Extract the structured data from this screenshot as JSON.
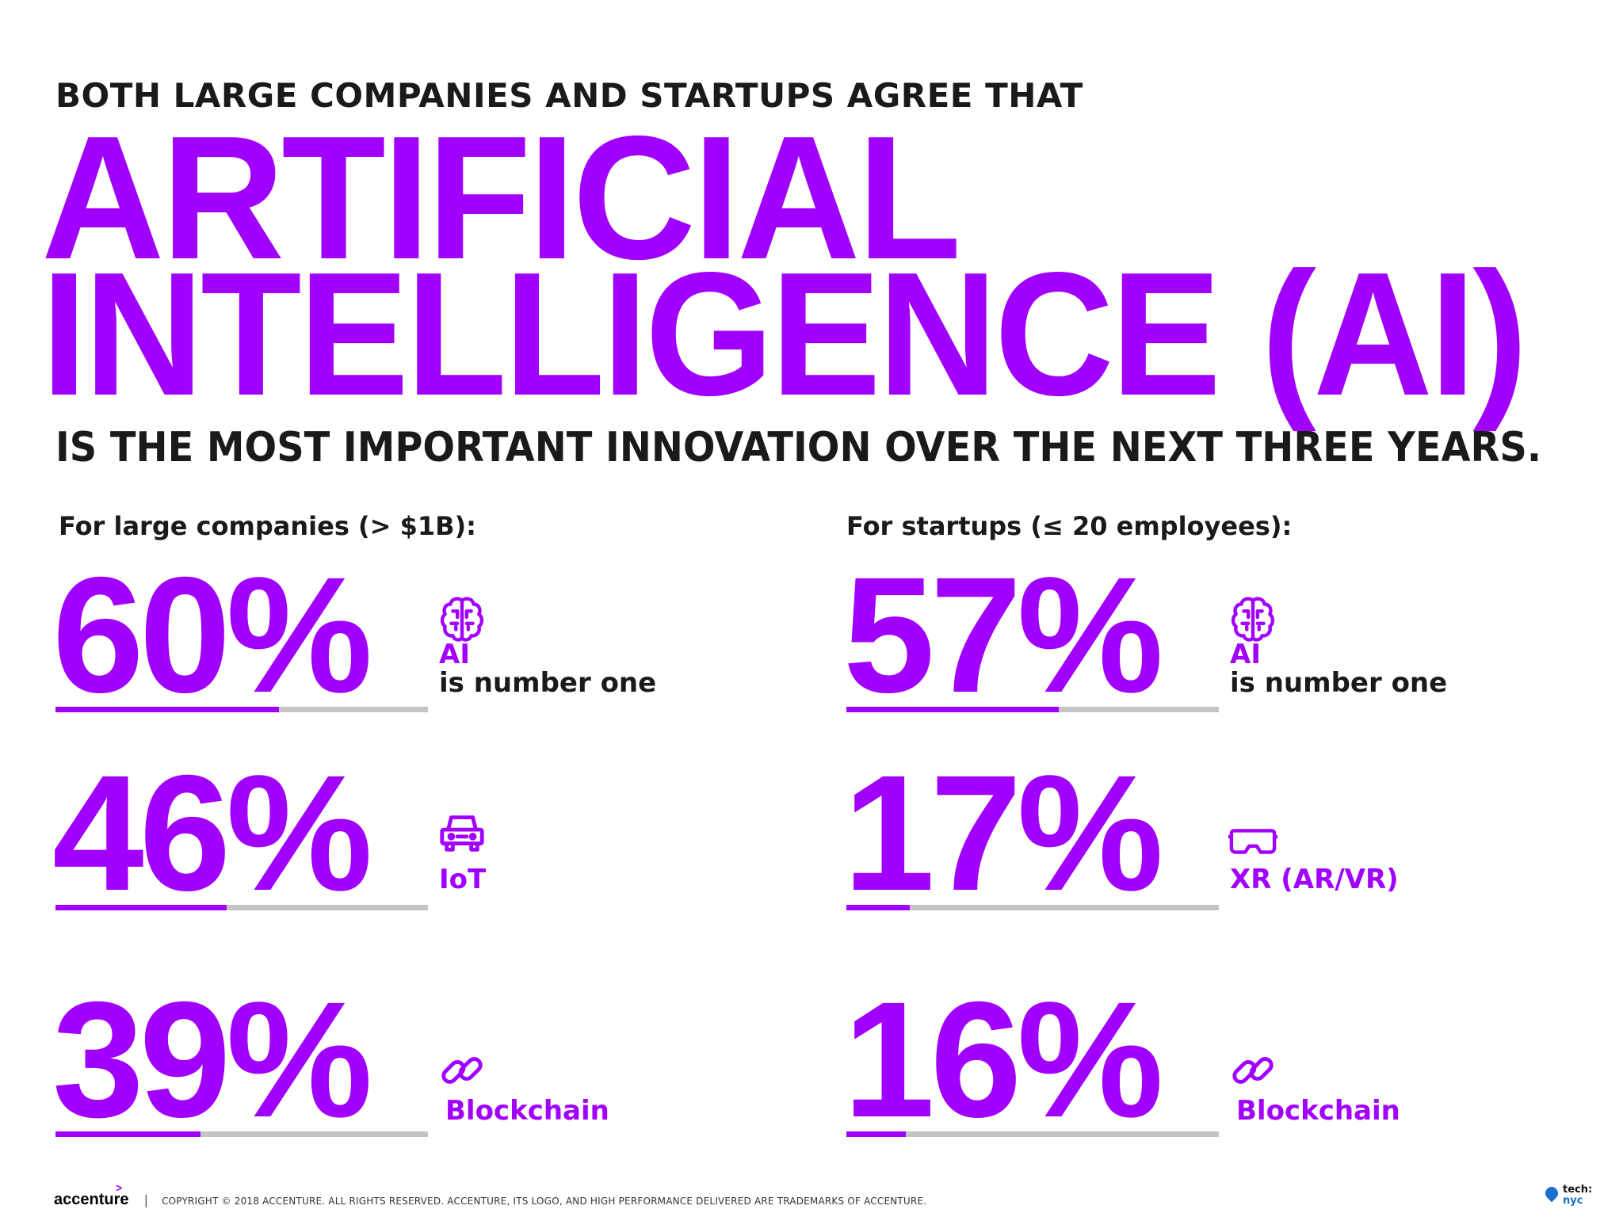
{
  "colors": {
    "accent": "#a100ff",
    "track": "#c4c4c4",
    "text": "#1a1a1a"
  },
  "header": {
    "kicker": "BOTH LARGE COMPANIES AND STARTUPS AGREE THAT",
    "headline_line1": "ARTIFICIAL",
    "headline_line2": "INTELLIGENCE (AI)",
    "subhead": "IS THE MOST IMPORTANT INNOVATION OVER THE NEXT THREE YEARS."
  },
  "large_companies": {
    "heading": "For large companies (> $1B):",
    "stats": [
      {
        "value": "60%",
        "fraction": 0.6,
        "icon": "brain-icon",
        "label": "AI",
        "sublabel": "is number one"
      },
      {
        "value": "46%",
        "fraction": 0.46,
        "icon": "car-icon",
        "label": "IoT",
        "sublabel": ""
      },
      {
        "value": "39%",
        "fraction": 0.39,
        "icon": "chain-link-icon",
        "label": "Blockchain",
        "sublabel": ""
      }
    ]
  },
  "startups": {
    "heading": "For startups (≤ 20 employees):",
    "stats": [
      {
        "value": "57%",
        "fraction": 0.57,
        "icon": "brain-icon",
        "label": "AI",
        "sublabel": "is number one"
      },
      {
        "value": "17%",
        "fraction": 0.17,
        "icon": "vr-headset-icon",
        "label": "XR (AR/VR)",
        "sublabel": ""
      },
      {
        "value": "16%",
        "fraction": 0.16,
        "icon": "chain-link-icon",
        "label": "Blockchain",
        "sublabel": ""
      }
    ]
  },
  "footer": {
    "logo": "accenture",
    "separator": "|",
    "copyright": "COPYRIGHT © 2018 ACCENTURE. ALL RIGHTS RESERVED. ACCENTURE, ITS LOGO, AND HIGH PERFORMANCE DELIVERED ARE TRADEMARKS OF ACCENTURE.",
    "partner_line1": "tech:",
    "partner_line2": "nyc"
  }
}
